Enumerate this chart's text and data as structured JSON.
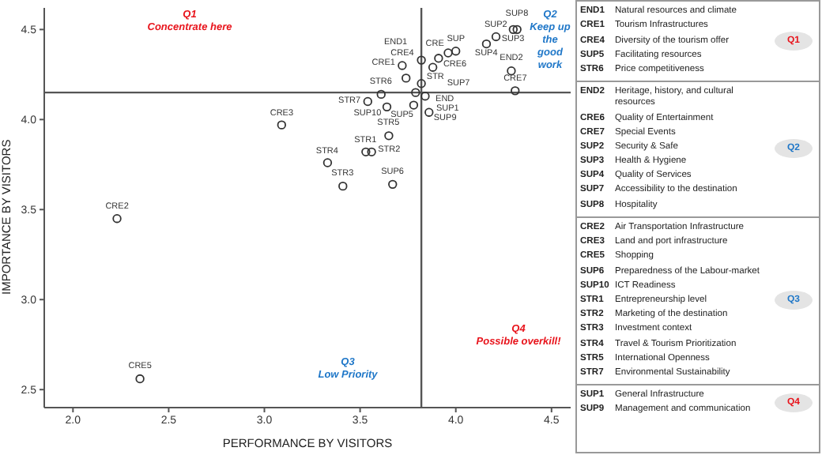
{
  "chart_data": [
    {
      "type": "scatter",
      "xlabel": "PERFORMANCE BY VISITORS",
      "ylabel": "IMPORTANCE BY VISITORS",
      "xlim": [
        1.85,
        4.6
      ],
      "ylim": [
        2.4,
        4.62
      ],
      "xticks": [
        {
          "value": 2,
          "label": "2.0"
        },
        {
          "value": 2.5,
          "label": "2.5"
        },
        {
          "value": 3,
          "label": "3.0"
        },
        {
          "value": 3.5,
          "label": "3.5"
        },
        {
          "value": 4,
          "label": "4.0"
        },
        {
          "value": 4.5,
          "label": "4.5"
        }
      ],
      "yticks": [
        {
          "value": 2.5,
          "label": "2.5"
        },
        {
          "value": 3,
          "label": "3.0"
        },
        {
          "value": 3.5,
          "label": "3.5"
        },
        {
          "value": 4,
          "label": "4.0"
        },
        {
          "value": 4.5,
          "label": "4.5"
        }
      ],
      "marker": "circle",
      "series": [
        {
          "color": "#333333",
          "x": [
            2.23,
            2.35,
            3.09,
            3.33,
            3.41,
            3.53,
            3.56,
            3.65,
            3.67,
            3.54,
            3.64,
            3.61,
            3.78,
            3.79,
            3.72,
            3.74,
            3.82,
            3.82,
            3.84,
            3.86,
            3.91,
            3.88,
            3.96,
            4.0,
            4.16,
            4.21,
            4.3,
            4.32,
            4.29,
            4.31
          ],
          "values": [
            3.45,
            2.56,
            3.97,
            3.76,
            3.63,
            3.82,
            3.82,
            3.91,
            3.64,
            4.1,
            4.07,
            4.14,
            4.08,
            4.15,
            4.3,
            4.23,
            4.33,
            4.2,
            4.13,
            4.04,
            4.34,
            4.29,
            4.37,
            4.38,
            4.42,
            4.46,
            4.5,
            4.5,
            4.27,
            4.16
          ],
          "value_labels": [
            "CRE2",
            "CRE5",
            "CRE3",
            "STR4",
            "STR3",
            "STR1",
            "STR2",
            "STR5",
            "SUP6",
            "STR7",
            "SUP10",
            "STR6",
            "SUP5",
            "STR",
            "CRE4",
            "CRE1",
            "END1",
            "END",
            "SUP1",
            "SUP9",
            "CRE6",
            "SUP7",
            "CRE",
            "SUP",
            "SUP4",
            "SUP2",
            "SUP3",
            "SUP8",
            "END2",
            "CRE7"
          ]
        }
      ],
      "ref_lines": [
        {
          "axis": "x",
          "value": 3.82,
          "color": "#555555"
        },
        {
          "axis": "y",
          "value": 4.15,
          "color": "#555555"
        }
      ],
      "annotations": [
        "Q1\nConcentrate here",
        "Q2\nKeep up the good work",
        "Q3\nLow Priority",
        "Q4\nPossible overkill!"
      ]
    },
    {
      "type": "other",
      "annotations": [
        "END1 Natural resources and climate",
        "CRE1 Tourism Infrastructures",
        "CRE4 Diversity of the tourism offer",
        "SUP5 Facilitating resources",
        "STR6 Price competitiveness",
        {
          "text": "Q1"
        },
        "END2 Heritage, history, and cultural resources",
        "CRE6 Quality of Entertainment",
        "CRE7 Special Events",
        "SUP2 Security & Safe",
        "SUP3 Health & Hygiene",
        "SUP4 Quality of Services",
        "SUP7 Accessibility to the destination",
        "SUP8 Hospitality",
        {
          "text": "Q2"
        },
        "CRE2 Air Transportation Infrastructure",
        "CRE3 Land and port infrastructure",
        "CRE5 Shopping",
        "SUP6 Preparedness of the Labour-market",
        "SUP10 ICT Readiness",
        "STR1 Entrepreneurship level",
        "STR2 Marketing of the destination",
        "STR3 Investment context",
        "STR4 Travel & Tourism Prioritization",
        "STR5 International Openness",
        "STR7 Environmental Sustainability",
        {
          "text": "Q3"
        },
        "SUP1 General Infrastructure",
        "SUP9 Management and communication",
        {
          "text": "Q4"
        }
      ]
    }
  ]
}
